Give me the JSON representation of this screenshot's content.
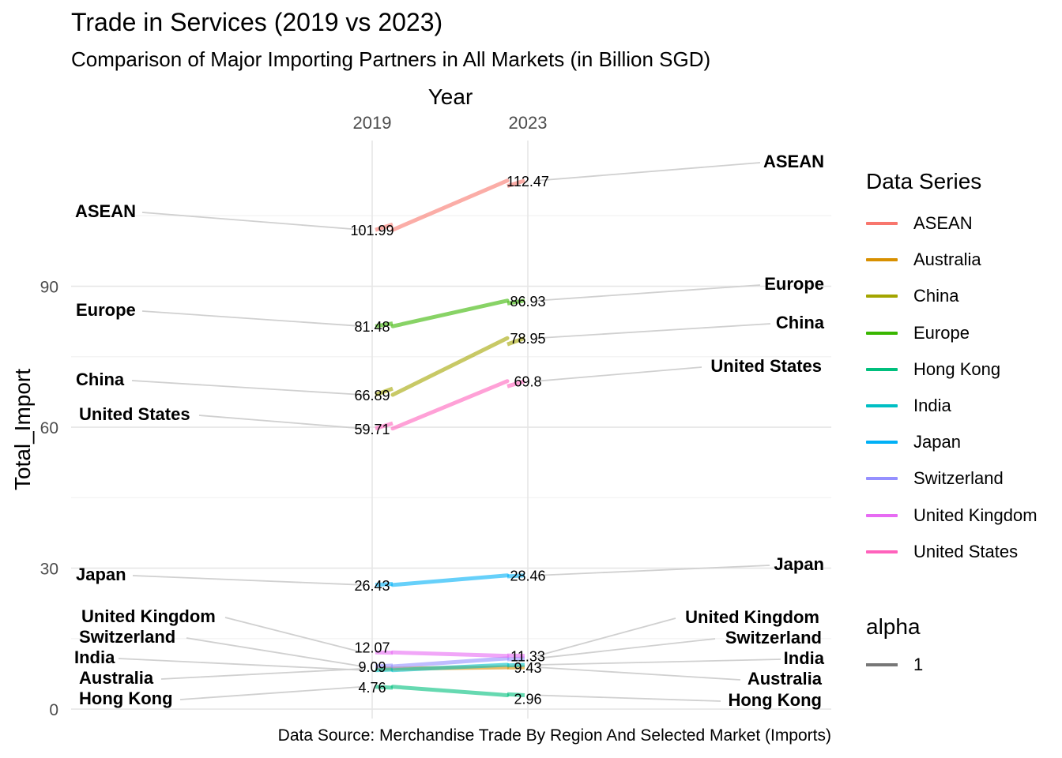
{
  "chart_data": {
    "type": "line",
    "title": "Trade in Services (2019 vs 2023)",
    "subtitle": "Comparison of Major Importing Partners in All Markets (in Billion SGD)",
    "caption": "Data Source: Merchandise Trade By Region And Selected Market (Imports)",
    "xlabel": "Year",
    "ylabel": "Total_Import",
    "x": [
      "2019",
      "2023"
    ],
    "y_ticks": [
      "0",
      "30",
      "60",
      "90"
    ],
    "ylim": [
      -2,
      121
    ],
    "x_axis_position": "top",
    "grid": true,
    "legend_position": "right",
    "legend_title": "Data Series",
    "series": [
      {
        "name": "ASEAN",
        "color": "#F8766D",
        "values": [
          101.99,
          112.47
        ],
        "labels": [
          "101.99",
          "112.47"
        ]
      },
      {
        "name": "Australia",
        "color": "#D89000",
        "values": [
          8.6,
          8.9
        ],
        "labels": [
          "",
          ""
        ]
      },
      {
        "name": "China",
        "color": "#A3A500",
        "values": [
          66.89,
          78.95
        ],
        "labels": [
          "66.89",
          "78.95"
        ]
      },
      {
        "name": "Europe",
        "color": "#39B600",
        "values": [
          81.48,
          86.93
        ],
        "labels": [
          "81.48",
          "86.93"
        ]
      },
      {
        "name": "Hong Kong",
        "color": "#00BF7D",
        "values": [
          4.76,
          2.96
        ],
        "labels": [
          "4.76",
          "2.96"
        ]
      },
      {
        "name": "India",
        "color": "#00BFC4",
        "values": [
          8.3,
          9.43
        ],
        "labels": [
          "",
          "9.43"
        ]
      },
      {
        "name": "Japan",
        "color": "#00B0F6",
        "values": [
          26.43,
          28.46
        ],
        "labels": [
          "26.43",
          "28.46"
        ]
      },
      {
        "name": "Switzerland",
        "color": "#9590FF",
        "values": [
          9.09,
          10.8
        ],
        "labels": [
          "9.09",
          ""
        ]
      },
      {
        "name": "United Kingdom",
        "color": "#E76BF3",
        "values": [
          12.07,
          11.33
        ],
        "labels": [
          "12.07",
          "11.33"
        ]
      },
      {
        "name": "United States",
        "color": "#FF62BC",
        "values": [
          59.71,
          69.8
        ],
        "labels": [
          "59.71",
          "69.8"
        ]
      }
    ],
    "alpha_legend": {
      "title": "alpha",
      "label": "1",
      "color": "#777777"
    }
  }
}
